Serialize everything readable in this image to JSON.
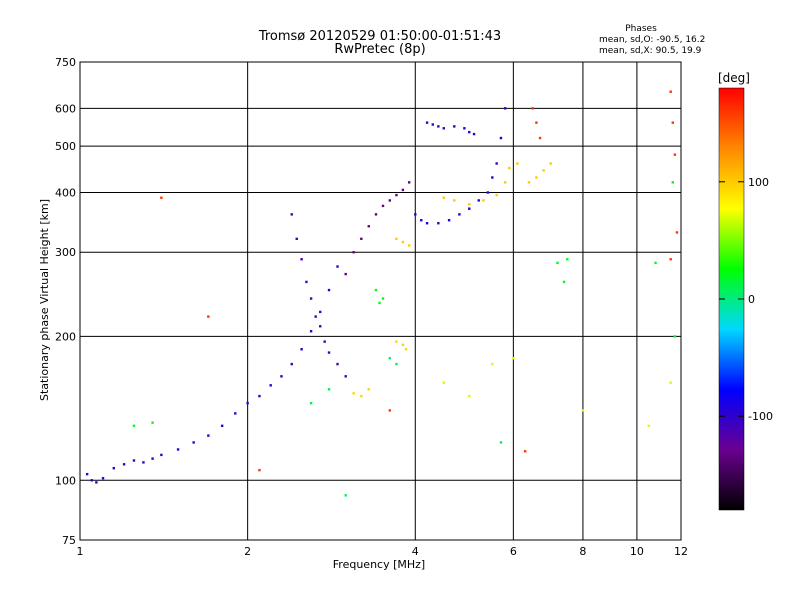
{
  "chart_data": {
    "type": "scatter",
    "title": "Tromsø 20120529 01:50:00-01:51:43",
    "subtitle": "RwPretec (8p)",
    "xlabel": "Frequency [MHz]",
    "ylabel": "Stationary phase Virtual Height [km]",
    "x_scale": "log",
    "y_scale": "log",
    "xlim": [
      1,
      12
    ],
    "ylim": [
      75,
      750
    ],
    "x_ticks": [
      1,
      2,
      4,
      6,
      8,
      10,
      12
    ],
    "x_tick_labels": [
      "1",
      "2",
      "4",
      "6",
      "8",
      "10",
      "12"
    ],
    "y_ticks": [
      75,
      100,
      200,
      300,
      400,
      500,
      600,
      750
    ],
    "y_tick_labels": [
      "75",
      "100",
      "200",
      "300",
      "400",
      "500",
      "600",
      "750"
    ],
    "grid": true,
    "stats": {
      "title": "Phases",
      "line_o": "mean, sd,O: -90.5, 16.2",
      "line_x": "mean, sd,X:  90.5, 19.9"
    },
    "colorbar": {
      "unit": "[deg]",
      "range": [
        -180,
        180
      ],
      "tick_values": [
        100,
        0,
        -100
      ],
      "tick_labels": [
        "100",
        "0",
        "-100"
      ],
      "colors": [
        "#000000",
        "#6a0090",
        "#0000ff",
        "#00d8ff",
        "#00ff00",
        "#ffff00",
        "#ff8800",
        "#ff0000"
      ]
    },
    "traces": [
      {
        "phase": -100,
        "points": [
          [
            1.03,
            103
          ],
          [
            1.05,
            100
          ],
          [
            1.07,
            99
          ],
          [
            1.1,
            101
          ],
          [
            1.15,
            106
          ],
          [
            1.2,
            108
          ],
          [
            1.25,
            110
          ],
          [
            1.3,
            109
          ],
          [
            1.35,
            111
          ],
          [
            1.4,
            113
          ],
          [
            1.5,
            116
          ],
          [
            1.6,
            120
          ],
          [
            1.7,
            124
          ],
          [
            1.8,
            130
          ],
          [
            1.9,
            138
          ],
          [
            2.0,
            145
          ],
          [
            2.1,
            150
          ],
          [
            2.2,
            158
          ],
          [
            2.3,
            165
          ],
          [
            2.4,
            175
          ],
          [
            2.5,
            188
          ],
          [
            2.6,
            205
          ],
          [
            2.7,
            225
          ],
          [
            2.8,
            250
          ],
          [
            2.9,
            280
          ]
        ]
      },
      {
        "phase": -110,
        "points": [
          [
            2.4,
            360
          ],
          [
            2.45,
            320
          ],
          [
            2.5,
            290
          ],
          [
            2.55,
            260
          ],
          [
            2.6,
            240
          ],
          [
            2.65,
            220
          ],
          [
            2.7,
            210
          ],
          [
            2.75,
            195
          ],
          [
            2.8,
            185
          ],
          [
            2.9,
            175
          ],
          [
            3.0,
            165
          ]
        ]
      },
      {
        "phase": -130,
        "points": [
          [
            3.0,
            270
          ],
          [
            3.1,
            300
          ],
          [
            3.2,
            320
          ],
          [
            3.3,
            340
          ],
          [
            3.4,
            360
          ],
          [
            3.5,
            375
          ],
          [
            3.6,
            385
          ],
          [
            3.7,
            395
          ],
          [
            3.8,
            405
          ],
          [
            3.9,
            420
          ]
        ]
      },
      {
        "phase": -95,
        "points": [
          [
            4.0,
            360
          ],
          [
            4.1,
            350
          ],
          [
            4.2,
            345
          ],
          [
            4.4,
            345
          ],
          [
            4.6,
            350
          ],
          [
            4.8,
            360
          ],
          [
            5.0,
            370
          ],
          [
            5.2,
            385
          ],
          [
            5.4,
            400
          ],
          [
            5.5,
            430
          ],
          [
            5.6,
            460
          ],
          [
            5.7,
            520
          ],
          [
            5.8,
            600
          ]
        ]
      },
      {
        "phase": -100,
        "points": [
          [
            4.2,
            560
          ],
          [
            4.3,
            555
          ],
          [
            4.4,
            550
          ],
          [
            4.5,
            545
          ],
          [
            4.7,
            550
          ],
          [
            4.9,
            545
          ],
          [
            5.0,
            535
          ],
          [
            5.1,
            530
          ]
        ]
      },
      {
        "phase": 100,
        "points": [
          [
            3.7,
            320
          ],
          [
            3.8,
            315
          ],
          [
            3.9,
            310
          ],
          [
            4.5,
            390
          ],
          [
            4.7,
            385
          ],
          [
            5.0,
            378
          ],
          [
            5.3,
            385
          ],
          [
            5.6,
            395
          ],
          [
            5.8,
            420
          ],
          [
            5.9,
            450
          ],
          [
            6.1,
            460
          ],
          [
            6.4,
            420
          ],
          [
            6.6,
            430
          ],
          [
            6.8,
            445
          ],
          [
            7.0,
            460
          ]
        ]
      },
      {
        "phase": 95,
        "points": [
          [
            3.7,
            195
          ],
          [
            3.8,
            192
          ],
          [
            3.85,
            188
          ],
          [
            3.1,
            152
          ],
          [
            3.2,
            150
          ],
          [
            3.3,
            155
          ]
        ]
      },
      {
        "phase": 160,
        "points": [
          [
            6.5,
            600
          ],
          [
            6.6,
            560
          ],
          [
            6.7,
            520
          ],
          [
            11.5,
            650
          ],
          [
            11.6,
            560
          ],
          [
            11.7,
            480
          ],
          [
            11.8,
            330
          ],
          [
            11.5,
            290
          ],
          [
            1.4,
            390
          ],
          [
            1.7,
            220
          ],
          [
            3.6,
            140
          ],
          [
            6.3,
            115
          ],
          [
            2.1,
            105
          ]
        ]
      },
      {
        "phase": 20,
        "points": [
          [
            3.4,
            250
          ],
          [
            3.45,
            235
          ],
          [
            3.5,
            240
          ],
          [
            7.2,
            285
          ],
          [
            7.5,
            290
          ],
          [
            11.6,
            420
          ],
          [
            11.7,
            200
          ],
          [
            10.8,
            285
          ],
          [
            1.25,
            130
          ],
          [
            1.35,
            132
          ],
          [
            7.4,
            260
          ]
        ]
      },
      {
        "phase": 70,
        "points": [
          [
            4.5,
            160
          ],
          [
            5.0,
            150
          ],
          [
            5.5,
            175
          ],
          [
            6.0,
            180
          ],
          [
            8.0,
            140
          ],
          [
            10.5,
            130
          ],
          [
            11.5,
            160
          ]
        ]
      },
      {
        "phase": 10,
        "points": [
          [
            3.0,
            93
          ],
          [
            2.6,
            145
          ],
          [
            2.8,
            155
          ],
          [
            3.6,
            180
          ],
          [
            3.7,
            175
          ],
          [
            5.7,
            120
          ]
        ]
      }
    ]
  }
}
